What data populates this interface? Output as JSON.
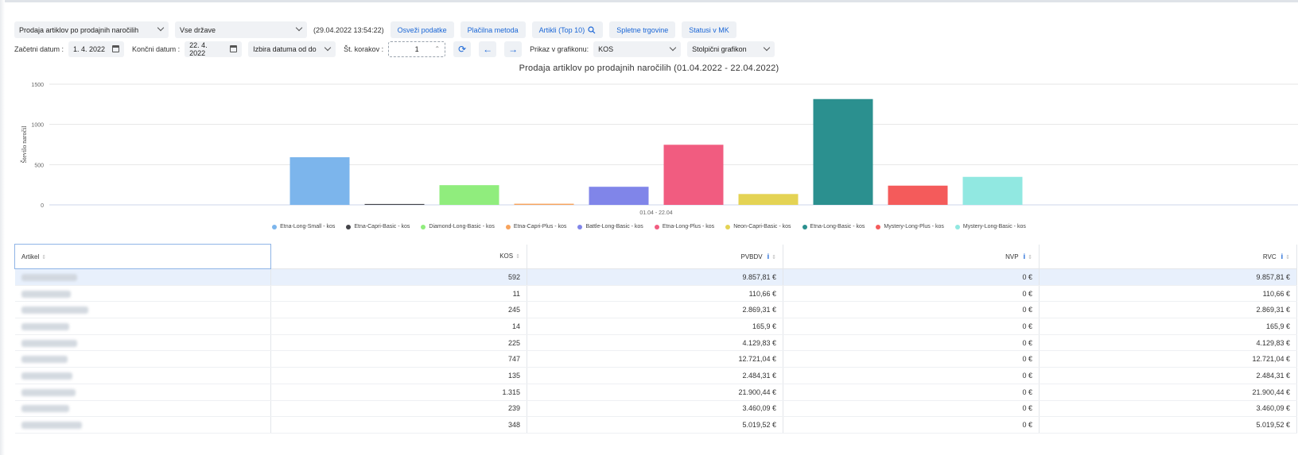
{
  "toolbar": {
    "report_select": "Prodaja artiklov po prodajnih naročilih",
    "country_select": "Vse države",
    "timestamp": "(29.04.2022 13:54:22)",
    "refresh_button": "Osveži podatke",
    "payment_button": "Plačilna metoda",
    "articles_button": "Artikli (Top 10)",
    "webshops_button": "Spletne trgovine",
    "statuses_button": "Statusi v MK"
  },
  "filters": {
    "start_label": "Začetni datum :",
    "start_value": "1. 4. 2022",
    "end_label": "Končni datum :",
    "end_value": "22. 4. 2022",
    "range_select": "Izbira datuma od do",
    "steps_label": "Št. korakov :",
    "steps_value": "1",
    "display_label": "Prikaz v grafikonu:",
    "display_select": "KOS",
    "chart_type_select": "Stolpični grafikon"
  },
  "chart_data": {
    "type": "bar",
    "title": "Prodaja artiklov po prodajnih naročilih (01.04.2022 - 22.04.2022)",
    "ylabel": "Število naročil",
    "xlabel": "",
    "categories": [
      "01.04 - 22.04"
    ],
    "ylim": [
      0,
      1500
    ],
    "yticks": [
      "0",
      "500",
      "1000",
      "1500"
    ],
    "grid": true,
    "legend_position": "bottom",
    "series": [
      {
        "name": "Etna-Long-Small - kos",
        "values": [
          592
        ],
        "color": "#7cb5ec"
      },
      {
        "name": "Etna-Capri-Basic - kos",
        "values": [
          11
        ],
        "color": "#434348"
      },
      {
        "name": "Diamond-Long-Basic - kos",
        "values": [
          245
        ],
        "color": "#90ed7d"
      },
      {
        "name": "Etna-Capri-Plus - kos",
        "values": [
          14
        ],
        "color": "#f7a35c"
      },
      {
        "name": "Battle-Long-Basic - kos",
        "values": [
          225
        ],
        "color": "#8085e9"
      },
      {
        "name": "Etna-Long-Plus - kos",
        "values": [
          747
        ],
        "color": "#f15c80"
      },
      {
        "name": "Neon-Capri-Basic - kos",
        "values": [
          135
        ],
        "color": "#e4d354"
      },
      {
        "name": "Etna-Long-Basic - kos",
        "values": [
          1315
        ],
        "color": "#2b908f"
      },
      {
        "name": "Mystery-Long-Plus - kos",
        "values": [
          239
        ],
        "color": "#f45b5b"
      },
      {
        "name": "Mystery-Long-Basic - kos",
        "values": [
          348
        ],
        "color": "#91e8e1"
      }
    ]
  },
  "table": {
    "headers": [
      "Artikel",
      "KOS",
      "PVBDV",
      "NVP",
      "RVC"
    ],
    "rows": [
      {
        "kos": "592",
        "pvbdv": "9.857,81 €",
        "nvp": "0 €",
        "rvc": "9.857,81 €"
      },
      {
        "kos": "11",
        "pvbdv": "110,66 €",
        "nvp": "0 €",
        "rvc": "110,66 €"
      },
      {
        "kos": "245",
        "pvbdv": "2.869,31 €",
        "nvp": "0 €",
        "rvc": "2.869,31 €"
      },
      {
        "kos": "14",
        "pvbdv": "165,9 €",
        "nvp": "0 €",
        "rvc": "165,9 €"
      },
      {
        "kos": "225",
        "pvbdv": "4.129,83 €",
        "nvp": "0 €",
        "rvc": "4.129,83 €"
      },
      {
        "kos": "747",
        "pvbdv": "12.721,04 €",
        "nvp": "0 €",
        "rvc": "12.721,04 €"
      },
      {
        "kos": "135",
        "pvbdv": "2.484,31 €",
        "nvp": "0 €",
        "rvc": "2.484,31 €"
      },
      {
        "kos": "1.315",
        "pvbdv": "21.900,44 €",
        "nvp": "0 €",
        "rvc": "21.900,44 €"
      },
      {
        "kos": "239",
        "pvbdv": "3.460,09 €",
        "nvp": "0 €",
        "rvc": "3.460,09 €"
      },
      {
        "kos": "348",
        "pvbdv": "5.019,52 €",
        "nvp": "0 €",
        "rvc": "5.019,52 €"
      }
    ]
  },
  "icons": {
    "articles_button": "search-icon",
    "date_fields": "calendar-icon",
    "refresh": "refresh-icon",
    "prev": "arrow-left-icon",
    "next": "arrow-right-icon",
    "header_info": "info-icon",
    "header_sort": "sort-icon"
  }
}
